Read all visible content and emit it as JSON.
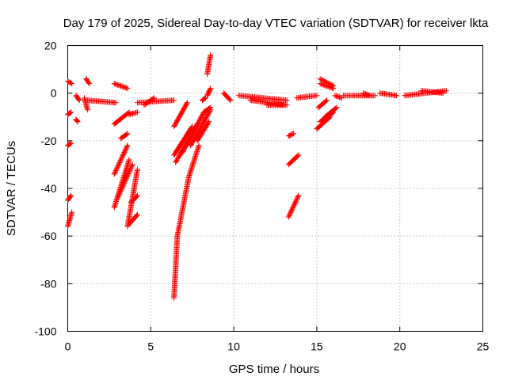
{
  "chart_data": {
    "type": "scatter",
    "title": "Day 179 of 2025, Sidereal Day-to-day VTEC variation (SDTVAR) for receiver lkta",
    "xlabel": "GPS time / hours",
    "ylabel": "SDTVAR / TECUs",
    "xlim": [
      0,
      25
    ],
    "ylim": [
      -100,
      20
    ],
    "xticks": [
      0,
      5,
      10,
      15,
      20,
      25
    ],
    "yticks": [
      -100,
      -80,
      -60,
      -40,
      -20,
      0,
      20
    ],
    "grid": true,
    "marker": "+",
    "color": "#ff0000",
    "segments": [
      {
        "x": [
          0.0,
          0.25
        ],
        "y": [
          5,
          4
        ]
      },
      {
        "x": [
          0.0,
          0.2
        ],
        "y": [
          -9,
          -8
        ]
      },
      {
        "x": [
          0.0,
          0.2
        ],
        "y": [
          -22,
          -21
        ]
      },
      {
        "x": [
          0.0,
          0.2
        ],
        "y": [
          -45,
          -43
        ]
      },
      {
        "x": [
          0.0,
          0.25
        ],
        "y": [
          -56,
          -50
        ]
      },
      {
        "x": [
          0.5,
          0.7
        ],
        "y": [
          -1,
          -3
        ]
      },
      {
        "x": [
          0.5,
          0.6
        ],
        "y": [
          -11,
          -12
        ]
      },
      {
        "x": [
          1.1,
          1.3
        ],
        "y": [
          6,
          4
        ]
      },
      {
        "x": [
          1.0,
          1.2
        ],
        "y": [
          -2,
          -7
        ]
      },
      {
        "x": [
          1.2,
          2.9
        ],
        "y": [
          -3,
          -4
        ]
      },
      {
        "x": [
          2.8,
          3.6
        ],
        "y": [
          4,
          2
        ]
      },
      {
        "x": [
          2.8,
          3.7
        ],
        "y": [
          -13,
          -8
        ]
      },
      {
        "x": [
          3.7,
          4.2
        ],
        "y": [
          -9,
          -8
        ]
      },
      {
        "x": [
          3.2,
          3.6
        ],
        "y": [
          -19,
          -17
        ]
      },
      {
        "x": [
          2.8,
          3.6
        ],
        "y": [
          -34,
          -22
        ]
      },
      {
        "x": [
          2.8,
          3.7
        ],
        "y": [
          -48,
          -28
        ]
      },
      {
        "x": [
          3.0,
          3.9
        ],
        "y": [
          -44,
          -30
        ]
      },
      {
        "x": [
          3.6,
          4.2
        ],
        "y": [
          -56,
          -32
        ]
      },
      {
        "x": [
          3.8,
          4.2
        ],
        "y": [
          -46,
          -43
        ]
      },
      {
        "x": [
          3.7,
          4.2
        ],
        "y": [
          -55,
          -51
        ]
      },
      {
        "x": [
          4.2,
          6.4
        ],
        "y": [
          -4,
          -3
        ]
      },
      {
        "x": [
          4.6,
          5.2
        ],
        "y": [
          -5,
          -2
        ]
      },
      {
        "x": [
          6.4,
          7.2
        ],
        "y": [
          -14,
          -4
        ]
      },
      {
        "x": [
          6.4,
          7.5
        ],
        "y": [
          -26,
          -14
        ]
      },
      {
        "x": [
          6.5,
          7.8
        ],
        "y": [
          -29,
          -13
        ]
      },
      {
        "x": [
          6.9,
          8.2
        ],
        "y": [
          -25,
          -8
        ]
      },
      {
        "x": [
          7.4,
          8.6
        ],
        "y": [
          -22,
          -7
        ]
      },
      {
        "x": [
          7.8,
          8.5
        ],
        "y": [
          -20,
          -12
        ]
      },
      {
        "x": [
          8.2,
          8.6
        ],
        "y": [
          -8,
          -6
        ]
      },
      {
        "x": [
          8.1,
          8.3
        ],
        "y": [
          -3,
          -2
        ]
      },
      {
        "x": [
          6.4,
          6.6
        ],
        "y": [
          -86,
          -60
        ]
      },
      {
        "x": [
          6.6,
          7.3
        ],
        "y": [
          -60,
          -35
        ]
      },
      {
        "x": [
          7.3,
          7.9
        ],
        "y": [
          -35,
          -22
        ]
      },
      {
        "x": [
          8.4,
          8.6
        ],
        "y": [
          -1,
          2
        ]
      },
      {
        "x": [
          8.4,
          8.6
        ],
        "y": [
          8,
          16
        ]
      },
      {
        "x": [
          9.4,
          9.8
        ],
        "y": [
          0,
          -3
        ]
      },
      {
        "x": [
          10.3,
          13.2
        ],
        "y": [
          -1,
          -3
        ]
      },
      {
        "x": [
          11.0,
          13.2
        ],
        "y": [
          -3,
          -5
        ]
      },
      {
        "x": [
          12.0,
          13.0
        ],
        "y": [
          -5,
          -5
        ]
      },
      {
        "x": [
          13.3,
          13.6
        ],
        "y": [
          -18,
          -17
        ]
      },
      {
        "x": [
          13.3,
          13.9
        ],
        "y": [
          -30,
          -26
        ]
      },
      {
        "x": [
          13.3,
          13.9
        ],
        "y": [
          -52,
          -43
        ]
      },
      {
        "x": [
          13.8,
          15.0
        ],
        "y": [
          -2,
          -1
        ]
      },
      {
        "x": [
          15.1,
          15.6
        ],
        "y": [
          -6,
          -3
        ]
      },
      {
        "x": [
          15.2,
          16.0
        ],
        "y": [
          6,
          3
        ]
      },
      {
        "x": [
          15.2,
          16.0
        ],
        "y": [
          4,
          2
        ]
      },
      {
        "x": [
          15.0,
          15.8
        ],
        "y": [
          -15,
          -10
        ]
      },
      {
        "x": [
          15.2,
          16.0
        ],
        "y": [
          -12,
          -8
        ]
      },
      {
        "x": [
          15.5,
          16.2
        ],
        "y": [
          -10,
          -6
        ]
      },
      {
        "x": [
          16.1,
          16.5
        ],
        "y": [
          -1,
          -2
        ]
      },
      {
        "x": [
          16.6,
          18.5
        ],
        "y": [
          -1,
          -1
        ]
      },
      {
        "x": [
          17.8,
          18.2
        ],
        "y": [
          0,
          -1
        ]
      },
      {
        "x": [
          18.8,
          19.8
        ],
        "y": [
          0,
          -1
        ]
      },
      {
        "x": [
          20.3,
          22.8
        ],
        "y": [
          -1,
          1
        ]
      },
      {
        "x": [
          21.3,
          22.6
        ],
        "y": [
          1,
          0
        ]
      }
    ]
  }
}
